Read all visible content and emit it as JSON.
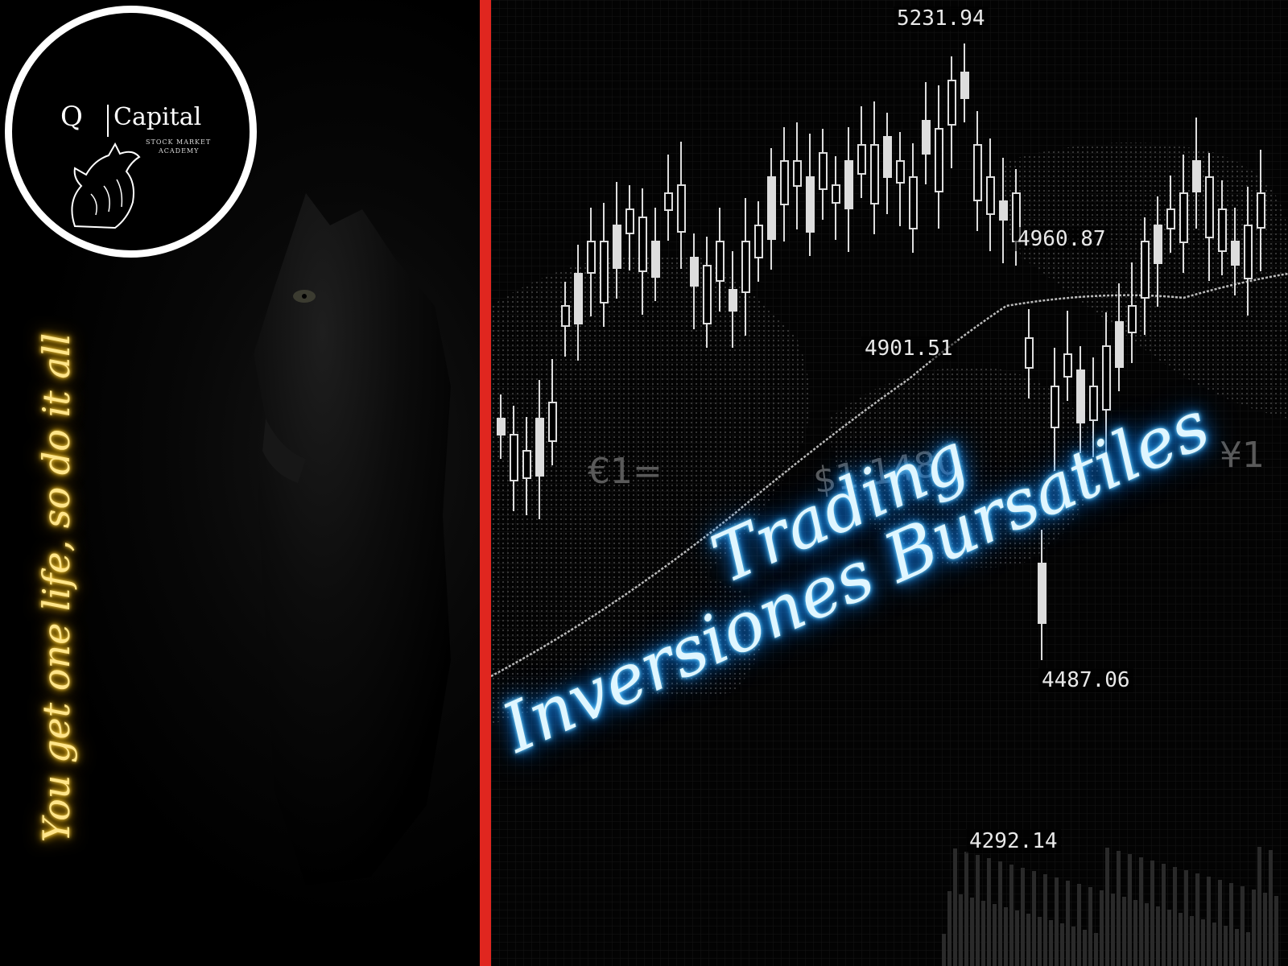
{
  "logo": {
    "letter": "Q",
    "brand": "Capital",
    "subtitle_line1": "STOCK MARKET",
    "subtitle_line2": "ACADEMY",
    "icon": "howling-wolf-icon"
  },
  "tagline": "You get one life, so do it all",
  "headline": {
    "line1": "Trading",
    "line2": "Inversiones Bursatiles"
  },
  "price_labels": [
    "5231.94",
    "4960.87",
    "4901.51",
    "4487.06",
    "4292.14"
  ],
  "background_text": [
    "€1=",
    "$1,1480",
    "¥1"
  ],
  "colors": {
    "divider": "#e0261f",
    "tagline_glow": "#ffc400",
    "headline_glow": "#29aaff",
    "background": "#000000"
  }
}
